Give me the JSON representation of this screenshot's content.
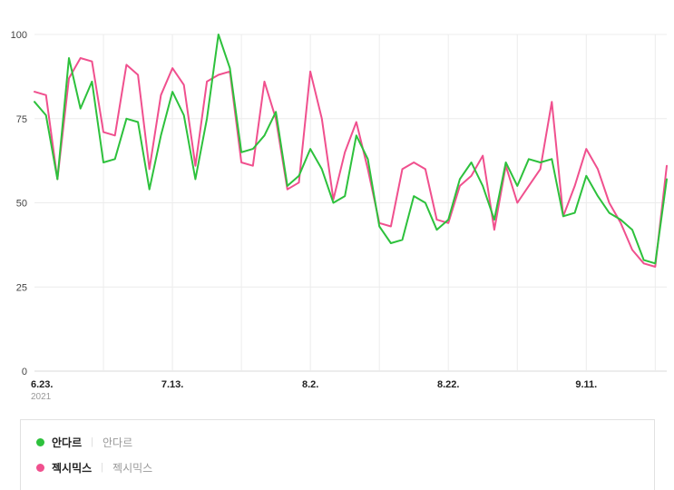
{
  "chart_data": {
    "type": "line",
    "title": "",
    "xlabel": "",
    "ylabel": "",
    "ylim": [
      0,
      100
    ],
    "y_ticks": [
      0,
      25,
      50,
      75,
      100
    ],
    "x_tick_labels": [
      "6.23.",
      "7.13.",
      "8.2.",
      "8.22.",
      "9.11."
    ],
    "x_tick_indices": [
      0,
      12,
      24,
      36,
      48
    ],
    "x_sub_label": "2021",
    "grid": true,
    "grid_x_start": 6,
    "grid_x_every": 6,
    "legend_position": "bottom",
    "series": [
      {
        "name": "안다르",
        "color": "#2dc13c",
        "values": [
          80,
          76,
          57,
          93,
          78,
          86,
          62,
          63,
          75,
          74,
          54,
          70,
          83,
          76,
          57,
          75,
          100,
          90,
          65,
          66,
          70,
          77,
          55,
          58,
          66,
          60,
          50,
          52,
          70,
          63,
          43,
          38,
          39,
          52,
          50,
          42,
          45,
          57,
          62,
          55,
          45,
          62,
          55,
          63,
          62,
          63,
          46,
          47,
          58,
          52,
          47,
          45,
          42,
          33,
          32,
          57
        ]
      },
      {
        "name": "젝시믹스",
        "color": "#f0508e",
        "values": [
          83,
          82,
          57,
          87,
          93,
          92,
          71,
          70,
          91,
          88,
          60,
          82,
          90,
          85,
          61,
          86,
          88,
          89,
          62,
          61,
          86,
          75,
          54,
          56,
          89,
          75,
          51,
          65,
          74,
          60,
          44,
          43,
          60,
          62,
          60,
          45,
          44,
          55,
          58,
          64,
          42,
          61,
          50,
          55,
          60,
          80,
          46,
          55,
          66,
          60,
          50,
          44,
          36,
          32,
          31,
          61
        ]
      }
    ]
  },
  "legend": {
    "items": [
      {
        "label": "안다르",
        "sub": "안다르",
        "color": "#2dc13c"
      },
      {
        "label": "젝시믹스",
        "sub": "젝시믹스",
        "color": "#f0508e"
      }
    ]
  }
}
